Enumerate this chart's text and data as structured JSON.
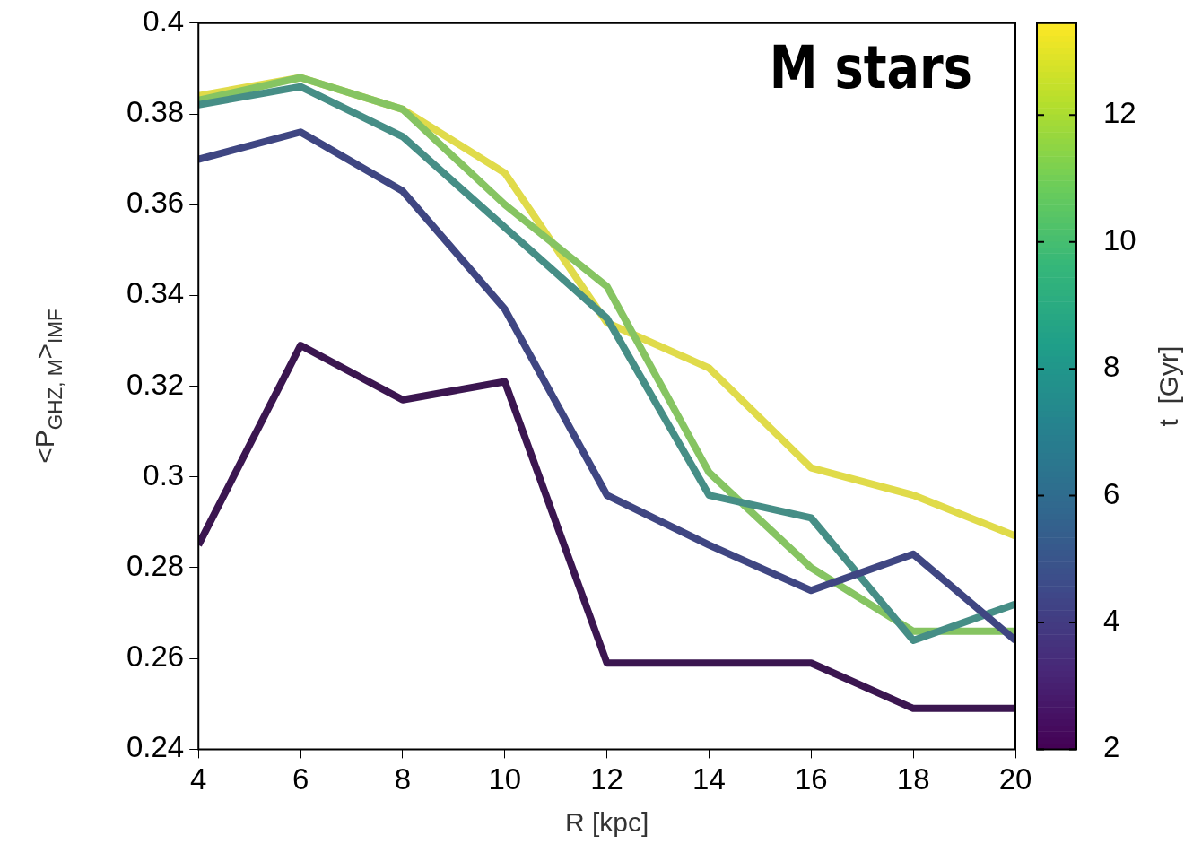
{
  "chart_data": {
    "type": "line",
    "xlabel": "R [kpc]",
    "ylabel": "<P$_{GHZ, M}$>$_{IMF}$",
    "clabel": "t  [Gyr]",
    "annotations": [
      "M stars"
    ],
    "x": [
      4,
      6,
      8,
      10,
      12,
      14,
      16,
      18,
      20
    ],
    "series": [
      {
        "color": "#3b1650",
        "values": [
          0.285,
          0.329,
          0.317,
          0.321,
          0.259,
          0.259,
          0.259,
          0.249,
          0.249
        ]
      },
      {
        "color": "#3f4682",
        "values": [
          0.37,
          0.376,
          0.363,
          0.337,
          0.296,
          0.285,
          0.275,
          0.283,
          0.264
        ]
      },
      {
        "color": "#468e86",
        "values": [
          0.382,
          0.386,
          0.375,
          0.355,
          0.335,
          0.296,
          0.291,
          0.264,
          0.272
        ]
      },
      {
        "color": "#86c462",
        "values": [
          0.383,
          0.388,
          0.381,
          0.36,
          0.342,
          0.301,
          0.28,
          0.266,
          0.266
        ]
      },
      {
        "color": "#e0db4a",
        "values": [
          0.384,
          0.388,
          0.381,
          0.367,
          0.334,
          0.324,
          0.302,
          0.296,
          0.287
        ]
      }
    ],
    "xlim": [
      4,
      20
    ],
    "xticks": [
      4,
      6,
      8,
      10,
      12,
      14,
      16,
      18,
      20
    ],
    "ylim": [
      0.24,
      0.4
    ],
    "yticks": [
      0.24,
      0.26,
      0.28,
      0.3,
      0.32,
      0.34,
      0.36,
      0.38,
      0.4
    ],
    "clim": [
      2,
      13.45
    ],
    "cticks": [
      2,
      4,
      6,
      8,
      10,
      12
    ],
    "legend": false,
    "grid": false
  }
}
